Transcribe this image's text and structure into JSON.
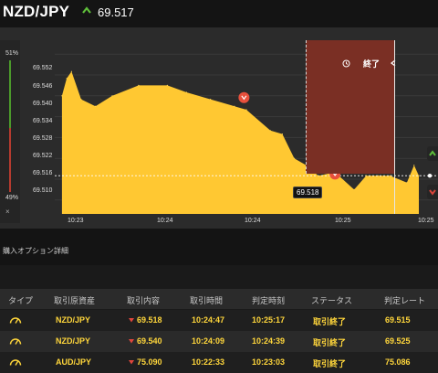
{
  "header": {
    "pair": "NZD/JPY",
    "price": "69.517",
    "trend_icon": "up-arrow-icon",
    "trend_color": "#5fbf3a"
  },
  "chart": {
    "gauge_top": "51%",
    "gauge_bottom": "49%",
    "close_label": "×",
    "y_ticks": [
      "69.552",
      "69.546",
      "69.540",
      "69.534",
      "69.528",
      "69.522",
      "69.516",
      "69.510"
    ],
    "x_ticks": [
      "10:23",
      "10:24",
      "10:24",
      "10:25",
      "10:25"
    ],
    "end_label": "終了",
    "price_tag": "69.518",
    "fill_color": "#ffc832",
    "end_zone_color": "#7a2f24"
  },
  "chart_data": {
    "type": "area",
    "y_range": [
      69.506,
      69.556
    ],
    "x_range": [
      "10:22:50",
      "10:25:30"
    ],
    "ylabel": "",
    "xlabel": "",
    "points": [
      {
        "x": "10:22:53",
        "y": 69.54
      },
      {
        "x": "10:22:55",
        "y": 69.545
      },
      {
        "x": "10:22:57",
        "y": 69.547
      },
      {
        "x": "10:23:01",
        "y": 69.539
      },
      {
        "x": "10:23:07",
        "y": 69.537
      },
      {
        "x": "10:23:14",
        "y": 69.54
      },
      {
        "x": "10:23:25",
        "y": 69.543
      },
      {
        "x": "10:23:37",
        "y": 69.543
      },
      {
        "x": "10:23:45",
        "y": 69.541
      },
      {
        "x": "10:23:55",
        "y": 69.539
      },
      {
        "x": "10:24:05",
        "y": 69.537
      },
      {
        "x": "10:24:10",
        "y": 69.536
      },
      {
        "x": "10:24:20",
        "y": 69.53
      },
      {
        "x": "10:24:25",
        "y": 69.529
      },
      {
        "x": "10:24:30",
        "y": 69.522
      },
      {
        "x": "10:24:35",
        "y": 69.52
      },
      {
        "x": "10:24:40",
        "y": 69.517
      },
      {
        "x": "10:24:47",
        "y": 69.518
      },
      {
        "x": "10:24:55",
        "y": 69.513
      },
      {
        "x": "10:25:00",
        "y": 69.517
      },
      {
        "x": "10:25:05",
        "y": 69.517
      },
      {
        "x": "10:25:10",
        "y": 69.517
      },
      {
        "x": "10:25:17",
        "y": 69.515
      },
      {
        "x": "10:25:20",
        "y": 69.52
      },
      {
        "x": "10:25:22",
        "y": 69.517
      }
    ]
  },
  "section": {
    "title": "購入オプション詳細"
  },
  "table": {
    "headers": [
      "タイプ",
      "取引原資産",
      "取引内容",
      "取引時間",
      "判定時刻",
      "ステータス",
      "判定レート"
    ],
    "rows": [
      {
        "asset": "NZD/JPY",
        "direction_icon": "down-arrow-icon",
        "rate": "69.518",
        "time": "10:24:47",
        "judge_time": "10:25:17",
        "status": "取引終了",
        "judge_rate": "69.515"
      },
      {
        "asset": "NZD/JPY",
        "direction_icon": "down-arrow-icon",
        "rate": "69.540",
        "time": "10:24:09",
        "judge_time": "10:24:39",
        "status": "取引終了",
        "judge_rate": "69.525"
      },
      {
        "asset": "AUD/JPY",
        "direction_icon": "down-arrow-icon",
        "rate": "75.090",
        "time": "10:22:33",
        "judge_time": "10:23:03",
        "status": "取引終了",
        "judge_rate": "75.086"
      }
    ]
  }
}
